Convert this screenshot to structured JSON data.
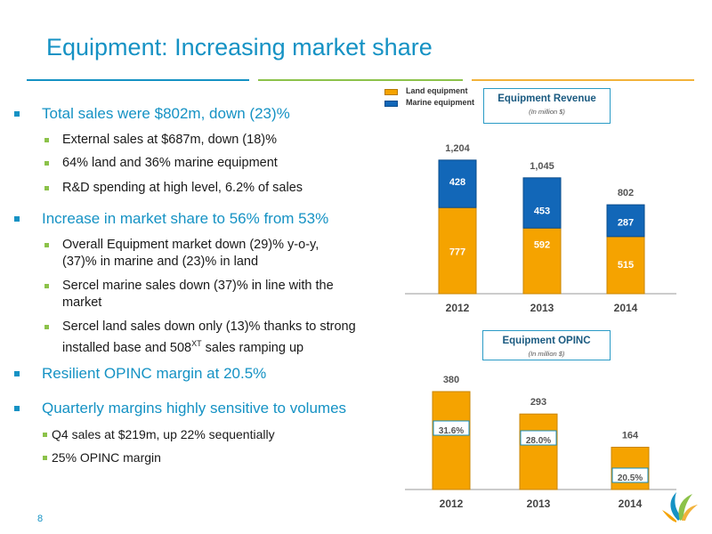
{
  "slide": {
    "title": "Equipment: Increasing market share",
    "page_number": "8"
  },
  "bullets": [
    {
      "level": 1,
      "text": "Total sales were $802m, down (23)%"
    },
    {
      "level": 2,
      "text": "External sales at $687m, down (18)%"
    },
    {
      "level": 2,
      "text": "64% land and 36% marine equipment"
    },
    {
      "level": 2,
      "text": "R&D spending at high level, 6.2% of sales"
    },
    {
      "level": 1,
      "text": "Increase in market share to 56% from 53%"
    },
    {
      "level": 2,
      "lines": [
        "Overall Equipment market down (29)% y-o-y,",
        "(37)% in marine and (23)% in land"
      ]
    },
    {
      "level": 2,
      "lines": [
        "Sercel  marine sales down (37)% in line with the",
        "market"
      ]
    },
    {
      "level": 2,
      "lines": [
        "Sercel  land sales down only (13)% thanks to strong",
        "installed base and 508"
      ],
      "sup": "XT",
      "after_sup": " sales ramping up"
    },
    {
      "level": 1,
      "text": "Resilient OPINC margin at 20.5%"
    },
    {
      "level": 1,
      "text": "Quarterly margins highly sensitive to volumes"
    },
    {
      "level": 3,
      "text": "Q4 sales at $219m, up 22% sequentially"
    },
    {
      "level": 3,
      "text": "25% OPINC margin"
    }
  ],
  "colors": {
    "accent": "#1592c4",
    "land": "#f5a300",
    "marine": "#1267b8",
    "green": "#8cc24a"
  },
  "chart_data": [
    {
      "type": "bar",
      "stacked": true,
      "title": "Equipment Revenue",
      "subtitle": "(In million $)",
      "categories": [
        "2012",
        "2013",
        "2014"
      ],
      "series": [
        {
          "name": "Land equipment",
          "values": [
            777,
            592,
            515
          ]
        },
        {
          "name": "Marine equipment",
          "values": [
            428,
            453,
            287
          ]
        }
      ],
      "totals": [
        "1,204",
        "1,045",
        "802"
      ],
      "legend_position": "top-left",
      "ylim": [
        0,
        1250
      ],
      "grid": false
    },
    {
      "type": "bar",
      "title": "Equipment OPINC",
      "subtitle": "(In million $)",
      "categories": [
        "2012",
        "2013",
        "2014"
      ],
      "values": [
        380,
        293,
        164
      ],
      "margin_labels": [
        "31.6%",
        "28.0%",
        "20.5%"
      ],
      "ylim": [
        0,
        400
      ],
      "grid": false
    }
  ]
}
